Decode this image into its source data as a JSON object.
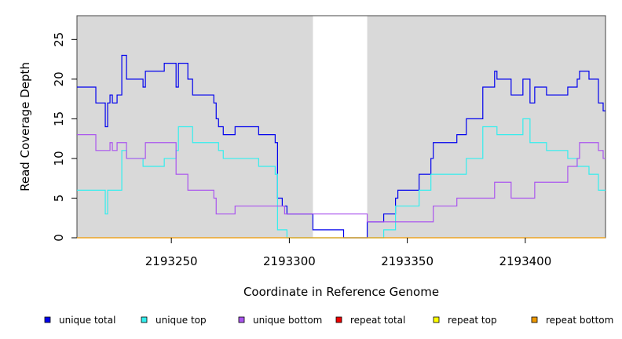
{
  "chart_data": {
    "type": "line",
    "xlabel": "Coordinate in Reference Genome",
    "ylabel": "Read Coverage Depth",
    "xlim": [
      2193210,
      2193434
    ],
    "ylim": [
      0,
      28
    ],
    "x_ticks": [
      2193250,
      2193300,
      2193350,
      2193400
    ],
    "x_tick_labels": [
      "2193250",
      "2193300",
      "2193350",
      "2193400"
    ],
    "y_ticks": [
      0,
      5,
      10,
      15,
      20,
      25
    ],
    "y_tick_labels": [
      "0",
      "5",
      "10",
      "15",
      "20",
      "25"
    ],
    "shaded_regions": [
      [
        2193210,
        2193310
      ],
      [
        2193333,
        2193434
      ]
    ],
    "region_shade_color": "#d9d9d9",
    "legend_position": "bottom",
    "legend": [
      {
        "label": "unique total",
        "color": "#0000ee"
      },
      {
        "label": "unique top",
        "color": "#33eeee"
      },
      {
        "label": "unique bottom",
        "color": "#aa55ee"
      },
      {
        "label": "repeat total",
        "color": "#ee0000"
      },
      {
        "label": "repeat top",
        "color": "#ffff00"
      },
      {
        "label": "repeat bottom",
        "color": "#ee9900"
      }
    ],
    "series": [
      {
        "name": "unique total",
        "color": "#0000ee",
        "step": true,
        "points": [
          [
            2193210,
            19
          ],
          [
            2193218,
            17
          ],
          [
            2193222,
            14
          ],
          [
            2193223,
            17
          ],
          [
            2193224,
            18
          ],
          [
            2193225,
            17
          ],
          [
            2193227,
            18
          ],
          [
            2193229,
            23
          ],
          [
            2193231,
            20
          ],
          [
            2193238,
            19
          ],
          [
            2193239,
            21
          ],
          [
            2193247,
            22
          ],
          [
            2193252,
            19
          ],
          [
            2193253,
            22
          ],
          [
            2193257,
            20
          ],
          [
            2193259,
            18
          ],
          [
            2193268,
            17
          ],
          [
            2193269,
            15
          ],
          [
            2193270,
            14
          ],
          [
            2193272,
            13
          ],
          [
            2193277,
            14
          ],
          [
            2193287,
            13
          ],
          [
            2193294,
            12
          ],
          [
            2193295,
            5
          ],
          [
            2193297,
            4
          ],
          [
            2193299,
            3
          ],
          [
            2193310,
            1
          ],
          [
            2193323,
            0
          ],
          [
            2193333,
            2
          ],
          [
            2193340,
            3
          ],
          [
            2193345,
            5
          ],
          [
            2193346,
            6
          ],
          [
            2193355,
            8
          ],
          [
            2193360,
            10
          ],
          [
            2193361,
            12
          ],
          [
            2193371,
            13
          ],
          [
            2193375,
            15
          ],
          [
            2193382,
            19
          ],
          [
            2193387,
            21
          ],
          [
            2193388,
            20
          ],
          [
            2193394,
            18
          ],
          [
            2193399,
            20
          ],
          [
            2193402,
            17
          ],
          [
            2193404,
            19
          ],
          [
            2193409,
            18
          ],
          [
            2193418,
            19
          ],
          [
            2193422,
            20
          ],
          [
            2193423,
            21
          ],
          [
            2193427,
            20
          ],
          [
            2193431,
            17
          ],
          [
            2193433,
            16
          ]
        ]
      },
      {
        "name": "unique top",
        "color": "#33eeee",
        "step": true,
        "points": [
          [
            2193210,
            6
          ],
          [
            2193222,
            3
          ],
          [
            2193223,
            6
          ],
          [
            2193229,
            11
          ],
          [
            2193231,
            10
          ],
          [
            2193238,
            9
          ],
          [
            2193247,
            10
          ],
          [
            2193252,
            11
          ],
          [
            2193253,
            14
          ],
          [
            2193259,
            12
          ],
          [
            2193270,
            11
          ],
          [
            2193272,
            10
          ],
          [
            2193287,
            9
          ],
          [
            2193294,
            8
          ],
          [
            2193295,
            1
          ],
          [
            2193299,
            0
          ],
          [
            2193333,
            0
          ],
          [
            2193340,
            1
          ],
          [
            2193345,
            4
          ],
          [
            2193355,
            6
          ],
          [
            2193360,
            8
          ],
          [
            2193375,
            10
          ],
          [
            2193382,
            14
          ],
          [
            2193388,
            13
          ],
          [
            2193399,
            15
          ],
          [
            2193402,
            12
          ],
          [
            2193409,
            11
          ],
          [
            2193418,
            10
          ],
          [
            2193422,
            9
          ],
          [
            2193427,
            8
          ],
          [
            2193431,
            6
          ]
        ]
      },
      {
        "name": "unique bottom",
        "color": "#aa55ee",
        "step": true,
        "points": [
          [
            2193210,
            13
          ],
          [
            2193218,
            11
          ],
          [
            2193224,
            12
          ],
          [
            2193225,
            11
          ],
          [
            2193227,
            12
          ],
          [
            2193231,
            10
          ],
          [
            2193238,
            10
          ],
          [
            2193239,
            12
          ],
          [
            2193252,
            8
          ],
          [
            2193257,
            6
          ],
          [
            2193268,
            5
          ],
          [
            2193269,
            3
          ],
          [
            2193277,
            4
          ],
          [
            2193298,
            3
          ],
          [
            2193299,
            3
          ],
          [
            2193333,
            2
          ],
          [
            2193345,
            2
          ],
          [
            2193361,
            4
          ],
          [
            2193371,
            5
          ],
          [
            2193387,
            7
          ],
          [
            2193394,
            5
          ],
          [
            2193404,
            7
          ],
          [
            2193418,
            9
          ],
          [
            2193422,
            10
          ],
          [
            2193423,
            12
          ],
          [
            2193431,
            11
          ],
          [
            2193433,
            10
          ]
        ]
      },
      {
        "name": "repeat bottom",
        "color": "#ee9900",
        "step": true,
        "points": [
          [
            2193210,
            0
          ],
          [
            2193434,
            0
          ]
        ]
      }
    ]
  }
}
